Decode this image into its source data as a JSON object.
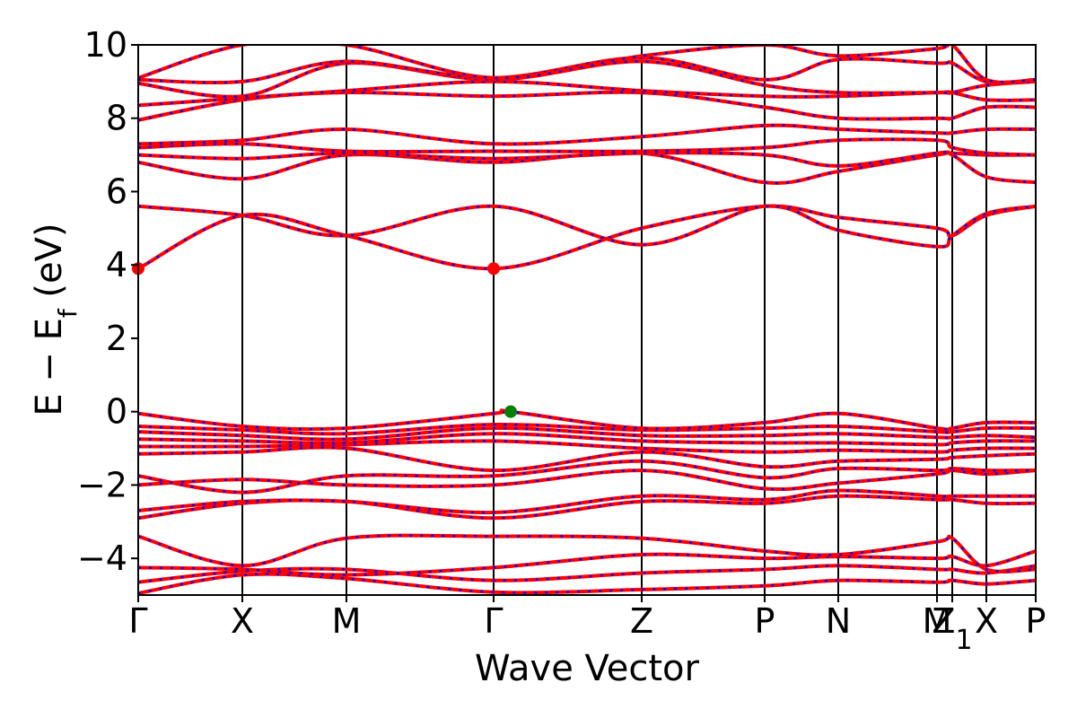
{
  "chart_data": {
    "type": "line",
    "title": "",
    "xlabel": "Wave Vector",
    "ylabel": "E − E_f (eV)",
    "ylim": [
      -5,
      10
    ],
    "yticks": [
      -4,
      -2,
      0,
      2,
      4,
      6,
      8,
      10
    ],
    "ytick_labels": [
      "−4",
      "−2",
      "0",
      "2",
      "4",
      "6",
      "8",
      "10"
    ],
    "x_range": [
      0,
      1
    ],
    "high_symmetry_points": [
      {
        "label": "Γ",
        "x": 0.0
      },
      {
        "label": "X",
        "x": 0.116
      },
      {
        "label": "M",
        "x": 0.232
      },
      {
        "label": "Γ",
        "x": 0.396
      },
      {
        "label": "Z",
        "x": 0.561
      },
      {
        "label": "P",
        "x": 0.698
      },
      {
        "label": "N",
        "x": 0.78
      },
      {
        "label": "M",
        "x": 0.89
      },
      {
        "label": "Z1",
        "x": 0.907
      },
      {
        "label": "X",
        "x": 0.945
      },
      {
        "label": "P",
        "x": 1.0
      }
    ],
    "grid": false,
    "legend": "none",
    "series_style": {
      "line_color": "#ff0000",
      "dash_overlay_color": "#0000ff"
    },
    "markers": [
      {
        "name": "CBM",
        "x": 0.0,
        "y": 3.9,
        "color": "#ff0000"
      },
      {
        "name": "CBM",
        "x": 0.396,
        "y": 3.9,
        "color": "#ff0000"
      },
      {
        "name": "VBM",
        "x": 0.415,
        "y": 0.0,
        "color": "#008000"
      }
    ],
    "bands": [
      [
        [
          0,
          -4.95
        ],
        [
          0.116,
          -4.45
        ],
        [
          0.232,
          -4.55
        ],
        [
          0.396,
          -4.92
        ],
        [
          0.561,
          -4.85
        ],
        [
          0.698,
          -4.75
        ],
        [
          0.78,
          -4.6
        ],
        [
          0.89,
          -4.65
        ],
        [
          0.907,
          -4.6
        ],
        [
          0.945,
          -4.7
        ],
        [
          1.0,
          -4.6
        ]
      ],
      [
        [
          0,
          -4.65
        ],
        [
          0.116,
          -4.35
        ],
        [
          0.232,
          -4.3
        ],
        [
          0.396,
          -4.6
        ],
        [
          0.561,
          -4.4
        ],
        [
          0.698,
          -4.3
        ],
        [
          0.78,
          -4.2
        ],
        [
          0.89,
          -4.3
        ],
        [
          0.907,
          -4.3
        ],
        [
          0.945,
          -4.4
        ],
        [
          1.0,
          -4.2
        ]
      ],
      [
        [
          0,
          -4.25
        ],
        [
          0.116,
          -4.3
        ],
        [
          0.232,
          -4.45
        ],
        [
          0.396,
          -4.25
        ],
        [
          0.561,
          -3.9
        ],
        [
          0.698,
          -4.0
        ],
        [
          0.78,
          -3.95
        ],
        [
          0.89,
          -4.0
        ],
        [
          0.907,
          -3.95
        ],
        [
          0.945,
          -4.2
        ],
        [
          1.0,
          -3.8
        ]
      ],
      [
        [
          0,
          -3.4
        ],
        [
          0.116,
          -4.2
        ],
        [
          0.232,
          -3.45
        ],
        [
          0.396,
          -3.4
        ],
        [
          0.561,
          -3.45
        ],
        [
          0.698,
          -3.8
        ],
        [
          0.78,
          -3.9
        ],
        [
          0.89,
          -3.55
        ],
        [
          0.907,
          -3.45
        ],
        [
          0.945,
          -4.3
        ],
        [
          1.0,
          -4.3
        ]
      ],
      [
        [
          0,
          -2.9
        ],
        [
          0.116,
          -2.5
        ],
        [
          0.232,
          -2.45
        ],
        [
          0.396,
          -2.9
        ],
        [
          0.561,
          -2.45
        ],
        [
          0.698,
          -2.5
        ],
        [
          0.78,
          -2.3
        ],
        [
          0.89,
          -2.4
        ],
        [
          0.907,
          -2.4
        ],
        [
          0.945,
          -2.5
        ],
        [
          1.0,
          -2.5
        ]
      ],
      [
        [
          0,
          -2.7
        ],
        [
          0.116,
          -2.45
        ],
        [
          0.232,
          -2.45
        ],
        [
          0.396,
          -2.75
        ],
        [
          0.561,
          -2.3
        ],
        [
          0.698,
          -2.4
        ],
        [
          0.78,
          -2.15
        ],
        [
          0.89,
          -2.3
        ],
        [
          0.907,
          -2.3
        ],
        [
          0.945,
          -2.3
        ],
        [
          1.0,
          -2.3
        ]
      ],
      [
        [
          0,
          -2.0
        ],
        [
          0.116,
          -1.85
        ],
        [
          0.232,
          -2.0
        ],
        [
          0.396,
          -2.0
        ],
        [
          0.561,
          -1.6
        ],
        [
          0.698,
          -2.1
        ],
        [
          0.78,
          -1.95
        ],
        [
          0.89,
          -1.7
        ],
        [
          0.907,
          -1.6
        ],
        [
          0.945,
          -1.7
        ],
        [
          1.0,
          -1.6
        ]
      ],
      [
        [
          0,
          -1.75
        ],
        [
          0.116,
          -2.2
        ],
        [
          0.232,
          -1.75
        ],
        [
          0.396,
          -1.75
        ],
        [
          0.561,
          -1.35
        ],
        [
          0.698,
          -1.8
        ],
        [
          0.78,
          -1.55
        ],
        [
          0.89,
          -1.6
        ],
        [
          0.907,
          -1.55
        ],
        [
          0.945,
          -1.6
        ],
        [
          1.0,
          -1.6
        ]
      ],
      [
        [
          0,
          -1.15
        ],
        [
          0.116,
          -1.1
        ],
        [
          0.232,
          -1.0
        ],
        [
          0.396,
          -1.6
        ],
        [
          0.561,
          -1.1
        ],
        [
          0.698,
          -1.5
        ],
        [
          0.78,
          -1.35
        ],
        [
          0.89,
          -1.3
        ],
        [
          0.907,
          -1.25
        ],
        [
          0.945,
          -1.2
        ],
        [
          1.0,
          -1.15
        ]
      ],
      [
        [
          0,
          -0.95
        ],
        [
          0.116,
          -0.95
        ],
        [
          0.232,
          -0.9
        ],
        [
          0.396,
          -0.8
        ],
        [
          0.561,
          -1.0
        ],
        [
          0.698,
          -1.1
        ],
        [
          0.78,
          -1.05
        ],
        [
          0.89,
          -1.1
        ],
        [
          0.907,
          -1.05
        ],
        [
          0.945,
          -1.0
        ],
        [
          1.0,
          -1.0
        ]
      ],
      [
        [
          0,
          -0.75
        ],
        [
          0.116,
          -0.8
        ],
        [
          0.232,
          -0.85
        ],
        [
          0.396,
          -0.6
        ],
        [
          0.561,
          -0.8
        ],
        [
          0.698,
          -0.85
        ],
        [
          0.78,
          -0.85
        ],
        [
          0.89,
          -0.9
        ],
        [
          0.907,
          -0.85
        ],
        [
          0.945,
          -0.8
        ],
        [
          1.0,
          -0.8
        ]
      ],
      [
        [
          0,
          -0.55
        ],
        [
          0.116,
          -0.65
        ],
        [
          0.232,
          -0.75
        ],
        [
          0.396,
          -0.45
        ],
        [
          0.561,
          -0.65
        ],
        [
          0.698,
          -0.65
        ],
        [
          0.78,
          -0.6
        ],
        [
          0.89,
          -0.7
        ],
        [
          0.907,
          -0.7
        ],
        [
          0.945,
          -0.65
        ],
        [
          1.0,
          -0.7
        ]
      ],
      [
        [
          0,
          -0.4
        ],
        [
          0.116,
          -0.5
        ],
        [
          0.232,
          -0.6
        ],
        [
          0.396,
          -0.35
        ],
        [
          0.561,
          -0.5
        ],
        [
          0.698,
          -0.45
        ],
        [
          0.78,
          -0.4
        ],
        [
          0.89,
          -0.55
        ],
        [
          0.907,
          -0.55
        ],
        [
          0.945,
          -0.45
        ],
        [
          1.0,
          -0.45
        ]
      ],
      [
        [
          0,
          -0.05
        ],
        [
          0.116,
          -0.4
        ],
        [
          0.232,
          -0.45
        ],
        [
          0.396,
          -0.05
        ],
        [
          0.415,
          0.0
        ],
        [
          0.561,
          -0.45
        ],
        [
          0.698,
          -0.3
        ],
        [
          0.78,
          -0.05
        ],
        [
          0.89,
          -0.45
        ],
        [
          0.907,
          -0.45
        ],
        [
          0.945,
          -0.3
        ],
        [
          1.0,
          -0.3
        ]
      ],
      [
        [
          0,
          3.9
        ],
        [
          0.116,
          5.35
        ],
        [
          0.232,
          4.8
        ],
        [
          0.396,
          3.9
        ],
        [
          0.561,
          5.0
        ],
        [
          0.698,
          5.6
        ],
        [
          0.78,
          5.3
        ],
        [
          0.89,
          5.0
        ],
        [
          0.907,
          4.8
        ],
        [
          0.945,
          5.35
        ],
        [
          1.0,
          5.6
        ]
      ],
      [
        [
          0,
          5.6
        ],
        [
          0.116,
          5.35
        ],
        [
          0.232,
          4.8
        ],
        [
          0.396,
          5.6
        ],
        [
          0.561,
          4.55
        ],
        [
          0.698,
          5.6
        ],
        [
          0.78,
          4.95
        ],
        [
          0.89,
          4.5
        ],
        [
          0.907,
          4.8
        ],
        [
          0.945,
          5.4
        ],
        [
          1.0,
          5.6
        ]
      ],
      [
        [
          0,
          6.8
        ],
        [
          0.116,
          6.35
        ],
        [
          0.232,
          7.0
        ],
        [
          0.396,
          6.8
        ],
        [
          0.561,
          7.05
        ],
        [
          0.698,
          6.25
        ],
        [
          0.78,
          6.55
        ],
        [
          0.89,
          7.0
        ],
        [
          0.907,
          7.0
        ],
        [
          0.945,
          6.4
        ],
        [
          1.0,
          6.25
        ]
      ],
      [
        [
          0,
          7.0
        ],
        [
          0.116,
          6.9
        ],
        [
          0.232,
          7.05
        ],
        [
          0.396,
          6.9
        ],
        [
          0.561,
          7.05
        ],
        [
          0.698,
          7.0
        ],
        [
          0.78,
          6.7
        ],
        [
          0.89,
          7.05
        ],
        [
          0.907,
          7.05
        ],
        [
          0.945,
          7.0
        ],
        [
          1.0,
          7.0
        ]
      ],
      [
        [
          0,
          7.2
        ],
        [
          0.116,
          7.3
        ],
        [
          0.232,
          7.1
        ],
        [
          0.396,
          7.1
        ],
        [
          0.561,
          7.1
        ],
        [
          0.698,
          7.2
        ],
        [
          0.78,
          7.4
        ],
        [
          0.89,
          7.4
        ],
        [
          0.907,
          7.2
        ],
        [
          0.945,
          7.05
        ],
        [
          1.0,
          7.0
        ]
      ],
      [
        [
          0,
          7.3
        ],
        [
          0.116,
          7.4
        ],
        [
          0.232,
          7.7
        ],
        [
          0.396,
          7.3
        ],
        [
          0.561,
          7.5
        ],
        [
          0.698,
          7.8
        ],
        [
          0.78,
          7.7
        ],
        [
          0.89,
          7.6
        ],
        [
          0.907,
          7.6
        ],
        [
          0.945,
          7.7
        ],
        [
          1.0,
          7.7
        ]
      ],
      [
        [
          0,
          7.95
        ],
        [
          0.116,
          8.5
        ],
        [
          0.232,
          8.7
        ],
        [
          0.396,
          8.6
        ],
        [
          0.561,
          8.7
        ],
        [
          0.698,
          8.3
        ],
        [
          0.78,
          8.0
        ],
        [
          0.89,
          8.0
        ],
        [
          0.907,
          8.0
        ],
        [
          0.945,
          8.3
        ],
        [
          1.0,
          8.3
        ]
      ],
      [
        [
          0,
          8.35
        ],
        [
          0.116,
          8.55
        ],
        [
          0.232,
          8.75
        ],
        [
          0.396,
          9.0
        ],
        [
          0.561,
          8.75
        ],
        [
          0.698,
          8.6
        ],
        [
          0.78,
          8.6
        ],
        [
          0.89,
          8.7
        ],
        [
          0.907,
          8.7
        ],
        [
          0.945,
          8.5
        ],
        [
          1.0,
          8.5
        ]
      ],
      [
        [
          0,
          8.95
        ],
        [
          0.116,
          8.6
        ],
        [
          0.232,
          9.5
        ],
        [
          0.396,
          9.05
        ],
        [
          0.561,
          9.55
        ],
        [
          0.698,
          8.9
        ],
        [
          0.78,
          8.7
        ],
        [
          0.89,
          8.7
        ],
        [
          0.907,
          8.7
        ],
        [
          0.945,
          8.9
        ],
        [
          1.0,
          9.0
        ]
      ],
      [
        [
          0,
          9.05
        ],
        [
          0.116,
          9.0
        ],
        [
          0.232,
          9.55
        ],
        [
          0.396,
          9.1
        ],
        [
          0.561,
          9.65
        ],
        [
          0.698,
          9.05
        ],
        [
          0.78,
          9.6
        ],
        [
          0.89,
          9.5
        ],
        [
          0.907,
          9.5
        ],
        [
          0.945,
          9.0
        ],
        [
          1.0,
          9.0
        ]
      ],
      [
        [
          0,
          9.1
        ],
        [
          0.116,
          10.0
        ],
        [
          0.232,
          10.0
        ],
        [
          0.396,
          9.1
        ],
        [
          0.561,
          9.7
        ],
        [
          0.698,
          10.0
        ],
        [
          0.78,
          9.7
        ],
        [
          0.89,
          9.9
        ],
        [
          0.907,
          10.0
        ],
        [
          0.945,
          9.05
        ],
        [
          1.0,
          9.05
        ]
      ]
    ]
  }
}
